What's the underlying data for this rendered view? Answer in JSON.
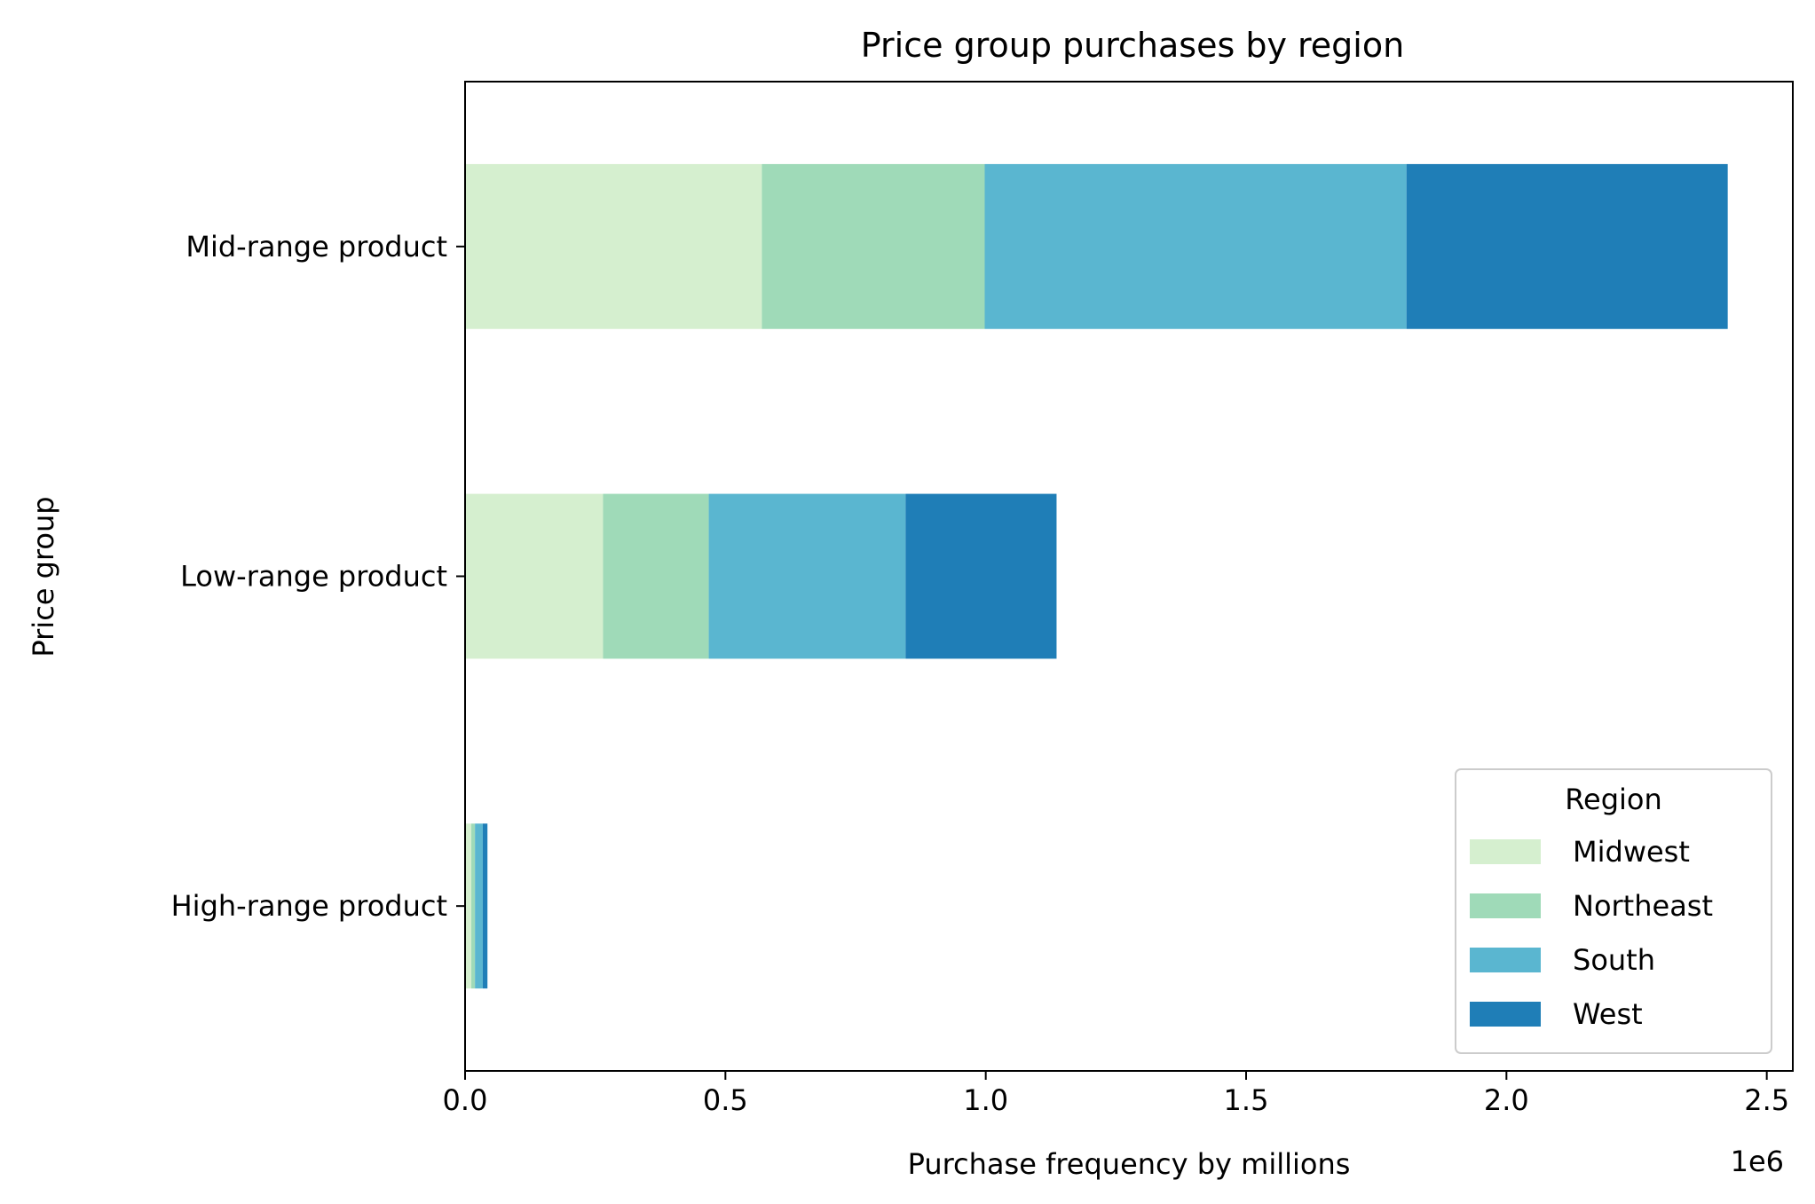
{
  "chart_data": {
    "type": "bar",
    "orientation": "horizontal",
    "stacked": true,
    "title": "Price group purchases by region",
    "xlabel": "Purchase frequency by millions",
    "ylabel": "Price group",
    "x_offset_label": "1e6",
    "xlim": [
      0,
      2550000
    ],
    "xticks": [
      0,
      500000,
      1000000,
      1500000,
      2000000,
      2500000
    ],
    "xtick_labels": [
      "0.0",
      "0.5",
      "1.0",
      "1.5",
      "2.0",
      "2.5"
    ],
    "categories": [
      "Mid-range product",
      "Low-range product",
      "High-range product"
    ],
    "series": [
      {
        "name": "Midwest",
        "color": "#d5efcf",
        "values": [
          570000,
          265000,
          12000
        ]
      },
      {
        "name": "Northeast",
        "color": "#9fdab8",
        "values": [
          428000,
          203000,
          7000
        ]
      },
      {
        "name": "South",
        "color": "#5ab6d0",
        "values": [
          810000,
          378000,
          15000
        ]
      },
      {
        "name": "West",
        "color": "#1f7eb7",
        "values": [
          617000,
          290000,
          9000
        ]
      }
    ],
    "legend": {
      "title": "Region",
      "position": "lower-right"
    },
    "grid": false
  }
}
